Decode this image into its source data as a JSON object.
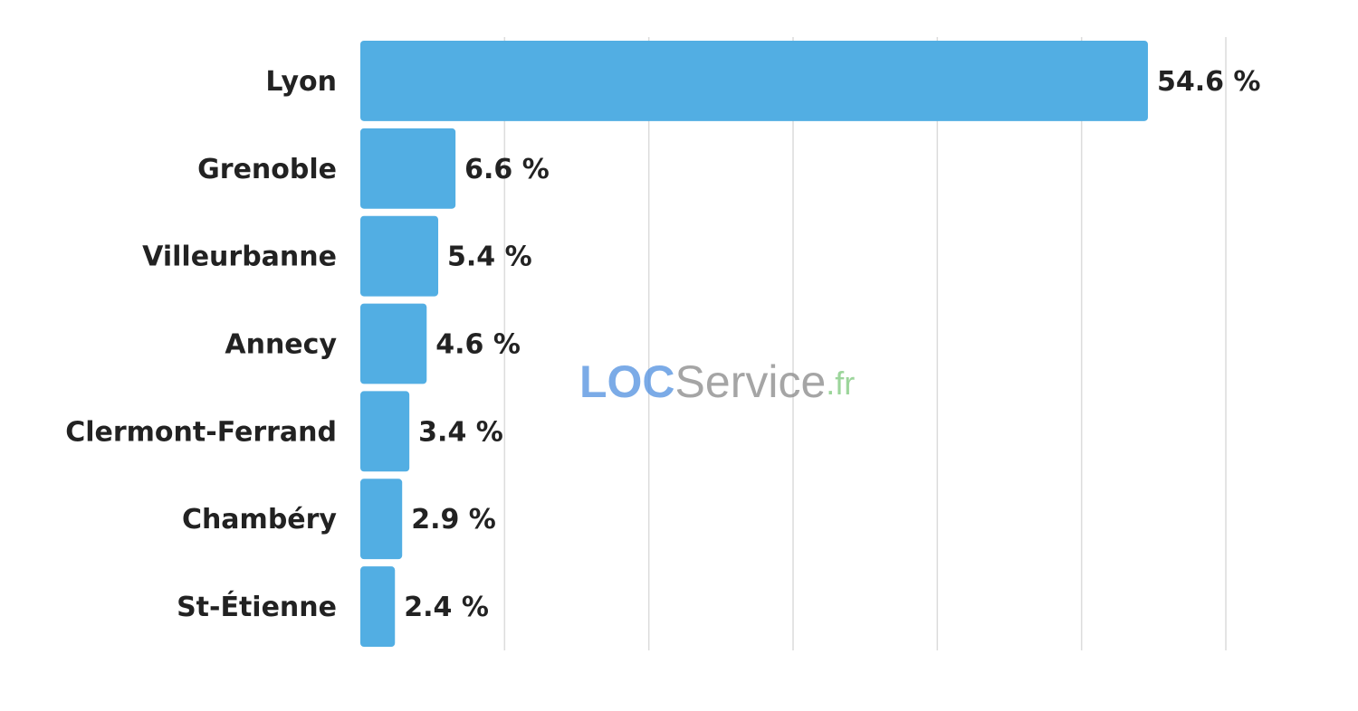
{
  "chart_data": {
    "type": "bar",
    "orientation": "horizontal",
    "categories": [
      "Lyon",
      "Grenoble",
      "Villeurbanne",
      "Annecy",
      "Clermont-Ferrand",
      "Chambéry",
      "St-Étienne"
    ],
    "values": [
      54.6,
      6.6,
      5.4,
      4.6,
      3.4,
      2.9,
      2.4
    ],
    "value_labels": [
      "54.6 %",
      "6.6 %",
      "5.4 %",
      "4.6 %",
      "3.4 %",
      "2.9 %",
      "2.4 %"
    ],
    "color": "#52aee3",
    "xlim": [
      0,
      60
    ],
    "xticks": [
      10,
      20,
      30,
      40,
      50,
      60
    ],
    "grid": true,
    "watermark": [
      "LOC",
      "Service",
      ".fr"
    ]
  }
}
